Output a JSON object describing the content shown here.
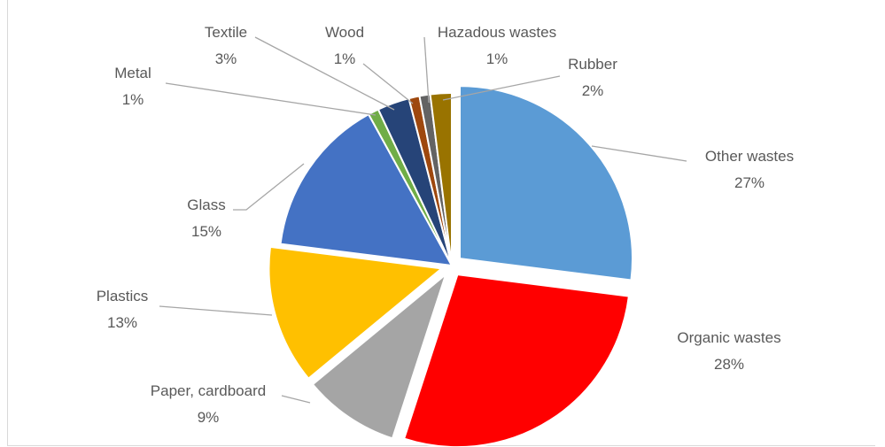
{
  "chart_data": {
    "type": "pie",
    "title": "",
    "slices": [
      {
        "label": "Other wastes",
        "value": 27,
        "display": "27%",
        "color": "#5b9bd5",
        "exploded": true
      },
      {
        "label": "Organic wastes",
        "value": 28,
        "display": "28%",
        "color": "#ff0000",
        "exploded": true
      },
      {
        "label": "Paper, cardboard",
        "value": 9,
        "display": "9%",
        "color": "#a5a5a5",
        "exploded": true
      },
      {
        "label": "Plastics",
        "value": 13,
        "display": "13%",
        "color": "#ffc000",
        "exploded": true
      },
      {
        "label": "Glass",
        "value": 15,
        "display": "15%",
        "color": "#4472c4",
        "exploded": false
      },
      {
        "label": "Metal",
        "value": 1,
        "display": "1%",
        "color": "#70ad47",
        "exploded": false
      },
      {
        "label": "Textile",
        "value": 3,
        "display": "3%",
        "color": "#264478",
        "exploded": false
      },
      {
        "label": "Wood",
        "value": 1,
        "display": "1%",
        "color": "#9e480e",
        "exploded": false
      },
      {
        "label": "Hazadous wastes",
        "value": 1,
        "display": "1%",
        "color": "#636363",
        "exploded": false
      },
      {
        "label": "Rubber",
        "value": 2,
        "display": "2%",
        "color": "#997300",
        "exploded": false
      }
    ],
    "legend": "none",
    "data_labels": "outside-with-leader-lines"
  }
}
